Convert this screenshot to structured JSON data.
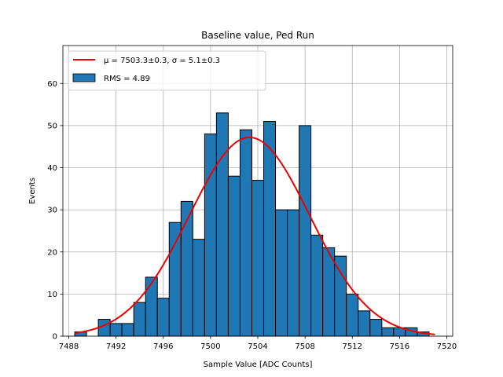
{
  "chart_data": {
    "type": "bar",
    "title": "Baseline value, Ped Run",
    "xlabel": "Sample Value [ADC Counts]",
    "ylabel": "Events",
    "xlim": [
      7487.5,
      7520.5
    ],
    "ylim": [
      0,
      69
    ],
    "grid": true,
    "bin_width": 1,
    "bins": [
      {
        "x0": 7488.5,
        "count": 1
      },
      {
        "x0": 7490.5,
        "count": 4
      },
      {
        "x0": 7491.5,
        "count": 3
      },
      {
        "x0": 7492.5,
        "count": 3
      },
      {
        "x0": 7493.5,
        "count": 8
      },
      {
        "x0": 7494.5,
        "count": 14
      },
      {
        "x0": 7495.5,
        "count": 9
      },
      {
        "x0": 7496.5,
        "count": 27
      },
      {
        "x0": 7497.5,
        "count": 32
      },
      {
        "x0": 7498.5,
        "count": 23
      },
      {
        "x0": 7499.5,
        "count": 48
      },
      {
        "x0": 7500.5,
        "count": 53
      },
      {
        "x0": 7501.5,
        "count": 38
      },
      {
        "x0": 7502.5,
        "count": 49
      },
      {
        "x0": 7503.5,
        "count": 37
      },
      {
        "x0": 7504.5,
        "count": 51
      },
      {
        "x0": 7505.5,
        "count": 30
      },
      {
        "x0": 7506.5,
        "count": 30
      },
      {
        "x0": 7507.5,
        "count": 50
      },
      {
        "x0": 7508.5,
        "count": 24
      },
      {
        "x0": 7509.5,
        "count": 21
      },
      {
        "x0": 7510.5,
        "count": 19
      },
      {
        "x0": 7511.5,
        "count": 10
      },
      {
        "x0": 7512.5,
        "count": 6
      },
      {
        "x0": 7513.5,
        "count": 4
      },
      {
        "x0": 7514.5,
        "count": 2
      },
      {
        "x0": 7515.5,
        "count": 2
      },
      {
        "x0": 7516.5,
        "count": 2
      },
      {
        "x0": 7517.5,
        "count": 1
      },
      {
        "x0": 7518.5,
        "count": 0
      }
    ],
    "fit": {
      "type": "gaussian",
      "mu": 7503.3,
      "sigma": 5.1,
      "amplitude": 47.2,
      "x_start": 7488.5,
      "x_end": 7519.0
    },
    "x_ticks": [
      7488,
      7492,
      7496,
      7500,
      7504,
      7508,
      7512,
      7516,
      7520
    ],
    "x_tick_labels": [
      "7488",
      "7492",
      "7496",
      "7500",
      "7504",
      "7508",
      "7512",
      "7516",
      "7520"
    ],
    "y_ticks": [
      0,
      10,
      20,
      30,
      40,
      50,
      60
    ],
    "y_tick_labels": [
      "0",
      "10",
      "20",
      "30",
      "40",
      "50",
      "60"
    ],
    "legend": {
      "position": "top-left",
      "fit_label_prefix": "μ = 7503.3±0.3, ",
      "fit_label_suffix": "σ = 5.1±0.3",
      "hist_label": "RMS = 4.89"
    },
    "colors": {
      "bar_fill": "#1f77b4",
      "bar_edge": "#000000",
      "fit_line": "#ee0000",
      "grid": "#b0b0b0"
    }
  }
}
